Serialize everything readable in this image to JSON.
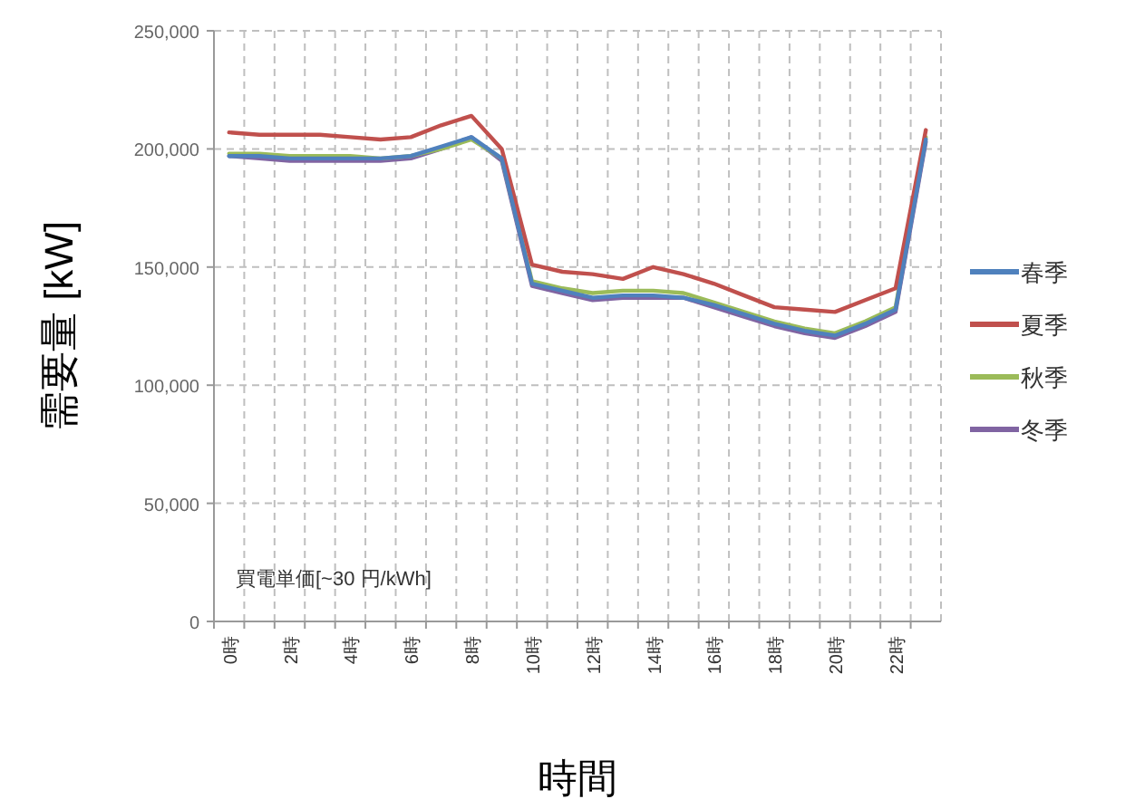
{
  "chart_data": {
    "type": "line",
    "xlabel": "時間",
    "ylabel": "需要量 [kW]",
    "categories": [
      "0時",
      null,
      "2時",
      null,
      "4時",
      null,
      "6時",
      null,
      "8時",
      null,
      "10時",
      null,
      "12時",
      null,
      "14時",
      null,
      "16時",
      null,
      "18時",
      null,
      "20時",
      null,
      "22時",
      null
    ],
    "series": [
      {
        "name": "春季",
        "color": "#4f81bd",
        "values": [
          197000,
          197000,
          196000,
          196000,
          196000,
          196000,
          197000,
          201000,
          205000,
          196000,
          143000,
          140000,
          137000,
          138000,
          138000,
          137000,
          134000,
          130000,
          126000,
          123000,
          121000,
          126000,
          132000,
          204000
        ]
      },
      {
        "name": "夏季",
        "color": "#c0504d",
        "values": [
          207000,
          206000,
          206000,
          206000,
          205000,
          204000,
          205000,
          210000,
          214000,
          200000,
          151000,
          148000,
          147000,
          145000,
          150000,
          147000,
          143000,
          138000,
          133000,
          132000,
          131000,
          136000,
          141000,
          208000
        ]
      },
      {
        "name": "秋季",
        "color": "#9bbb59",
        "values": [
          198000,
          198000,
          197000,
          197000,
          197000,
          196000,
          197000,
          200000,
          204000,
          196000,
          144000,
          141000,
          139000,
          140000,
          140000,
          139000,
          135000,
          131000,
          127000,
          124000,
          122000,
          127000,
          133000,
          205000
        ]
      },
      {
        "name": "冬季",
        "color": "#8064a2",
        "values": [
          197000,
          196000,
          195000,
          195000,
          195000,
          195000,
          196000,
          200000,
          205000,
          195000,
          142000,
          139000,
          136000,
          137000,
          137000,
          137000,
          133000,
          129000,
          125000,
          122000,
          120000,
          125000,
          131000,
          203000
        ]
      }
    ],
    "ylim": [
      0,
      250000
    ],
    "yticks": [
      {
        "value": 0,
        "label": "0"
      },
      {
        "value": 50000,
        "label": "50,000"
      },
      {
        "value": 100000,
        "label": "100,000"
      },
      {
        "value": 150000,
        "label": "150,000"
      },
      {
        "value": 200000,
        "label": "200,000"
      },
      {
        "value": 250000,
        "label": "250,000"
      }
    ],
    "grid": true,
    "legend": "right",
    "marker": "none",
    "line_style": "solid",
    "annotations": [
      "買電単価[~30 円/kWh]"
    ]
  }
}
